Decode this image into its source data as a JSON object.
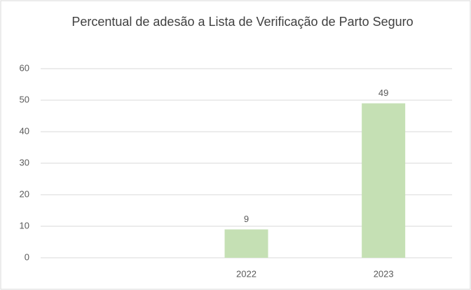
{
  "chart_data": {
    "type": "bar",
    "title": "Percentual de adesão a Lista de Verificação de Parto Seguro",
    "categories": [
      null,
      "2022",
      "2023"
    ],
    "values": [
      null,
      9,
      49
    ],
    "color": "#c5e0b4",
    "ylim": [
      0,
      60
    ],
    "yticks": [
      0,
      10,
      20,
      30,
      40,
      50,
      60
    ],
    "grid": true,
    "data_labels": true
  }
}
